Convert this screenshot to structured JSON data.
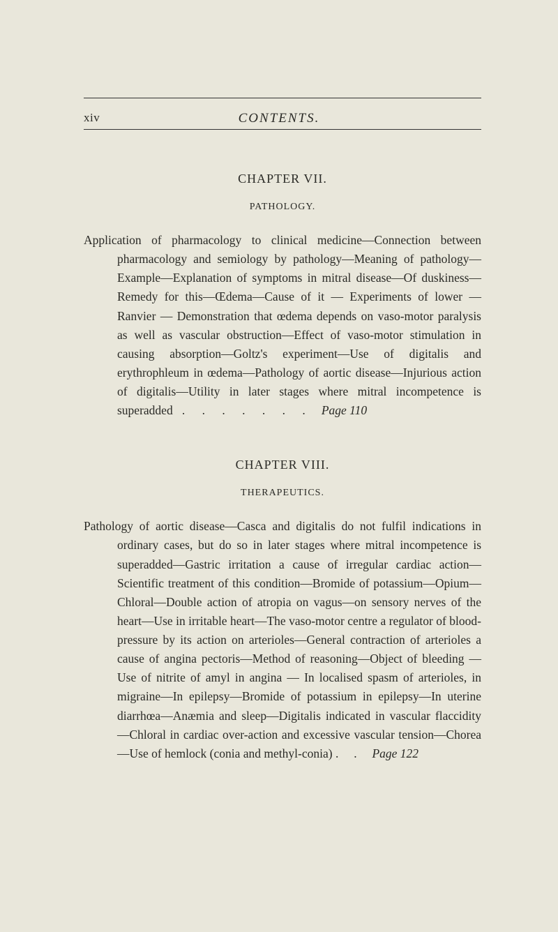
{
  "running_head": {
    "page_numeral": "xiv",
    "title": "CONTENTS."
  },
  "chapters": [
    {
      "chapter_title": "CHAPTER VII.",
      "section_label": "PATHOLOGY.",
      "entry_text": "Application of pharmacology to clinical medicine—Connection between pharmacology and semiology by pathology—Meaning of pathology—Example—Explanation of symptoms in mitral disease—Of duskiness—Remedy for this—Œdema—Cause of it — Experiments of lower — Ranvier — Demonstration that œdema depends on vaso-motor paralysis as well as vascular obstruction—Effect of vaso-motor stimulation in causing absorption—Goltz's experiment—Use of digitalis and erythrophleum in œdema—Pathology of aortic disease—Injurious action of digitalis—Utility in later stages where mitral incompetence is superadded",
      "page_ref": "Page 110"
    },
    {
      "chapter_title": "CHAPTER VIII.",
      "section_label": "THERAPEUTICS.",
      "entry_text": "Pathology of aortic disease—Casca and digitalis do not fulfil indications in ordinary cases, but do so in later stages where mitral incompetence is superadded—Gastric irritation a cause of irregular cardiac action—Scientific treatment of this condition—Bromide of potassium—Opium—Chloral—Double action of atropia on vagus—on sensory nerves of the heart—Use in irritable heart—The vaso-motor centre a regulator of blood-pressure by its action on arterioles—General contraction of arterioles a cause of angina pectoris—Method of reasoning—Object of bleeding — Use of nitrite of amyl in angina — In localised spasm of arterioles, in migraine—In epilepsy—Bromide of potassium in epilepsy—In uterine diarrhœa—Anæmia and sleep—Digitalis indicated in vascular flaccidity—Chloral in cardiac over-action and excessive vascular tension—Chorea—Use of hemlock (conia and methyl-conia)  .",
      "page_ref": "Page 122"
    }
  ],
  "dots": ".   .   .   .   .   .   ."
}
